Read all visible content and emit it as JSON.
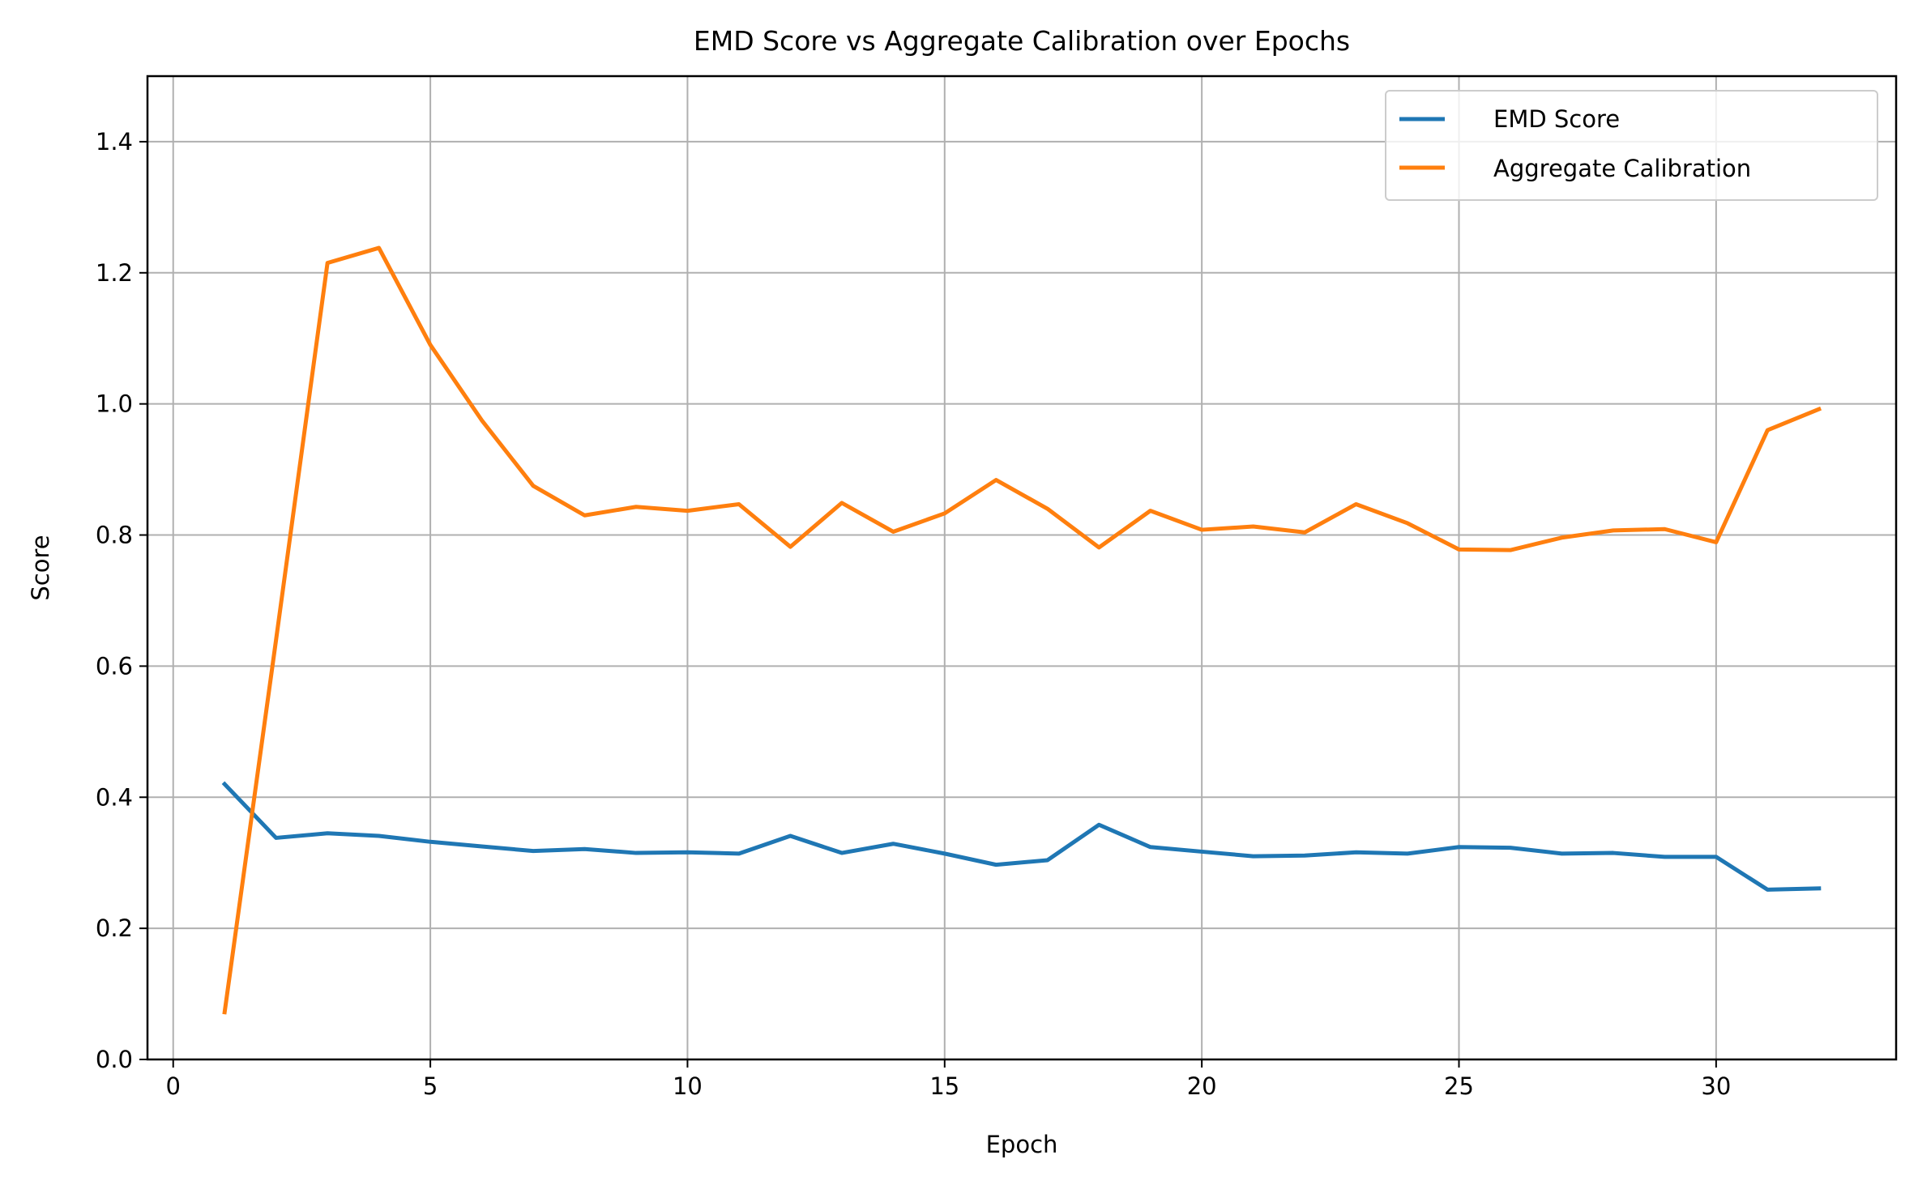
{
  "chart_data": {
    "type": "line",
    "title": "EMD Score vs Aggregate Calibration over Epochs",
    "xlabel": "Epoch",
    "ylabel": "Score",
    "xlim": [
      -0.5,
      33.5
    ],
    "ylim": [
      0,
      1.5
    ],
    "xticks": [
      0,
      5,
      10,
      15,
      20,
      25,
      30
    ],
    "yticks": [
      0.0,
      0.2,
      0.4,
      0.6,
      0.8,
      1.0,
      1.2,
      1.4
    ],
    "xtick_labels": [
      "0",
      "5",
      "10",
      "15",
      "20",
      "25",
      "30"
    ],
    "ytick_labels": [
      "0.0",
      "0.2",
      "0.4",
      "0.6",
      "0.8",
      "1.0",
      "1.2",
      "1.4"
    ],
    "grid": true,
    "legend_position": "top-right",
    "x": [
      1,
      2,
      3,
      4,
      5,
      6,
      7,
      8,
      9,
      10,
      11,
      12,
      13,
      14,
      15,
      16,
      17,
      18,
      19,
      20,
      21,
      22,
      23,
      24,
      25,
      26,
      27,
      28,
      29,
      30,
      31,
      32
    ],
    "series": [
      {
        "name": "EMD Score",
        "color": "#1f77b4",
        "values": [
          0.42,
          0.338,
          0.345,
          0.341,
          0.332,
          0.325,
          0.318,
          0.321,
          0.315,
          0.316,
          0.314,
          0.341,
          0.315,
          0.329,
          0.314,
          0.297,
          0.304,
          0.358,
          0.324,
          0.317,
          0.31,
          0.311,
          0.316,
          0.314,
          0.324,
          0.323,
          0.314,
          0.315,
          0.309,
          0.309,
          0.259,
          0.261
        ]
      },
      {
        "name": "Aggregate Calibration",
        "color": "#ff7f0e",
        "values": [
          0.072,
          0.64,
          1.215,
          1.238,
          1.09,
          0.975,
          0.875,
          0.83,
          0.843,
          0.837,
          0.847,
          0.782,
          0.849,
          0.805,
          0.833,
          0.884,
          0.84,
          0.781,
          0.837,
          0.808,
          0.813,
          0.804,
          0.847,
          0.818,
          0.778,
          0.777,
          0.796,
          0.807,
          0.809,
          0.789,
          0.96,
          0.992
        ]
      }
    ]
  }
}
